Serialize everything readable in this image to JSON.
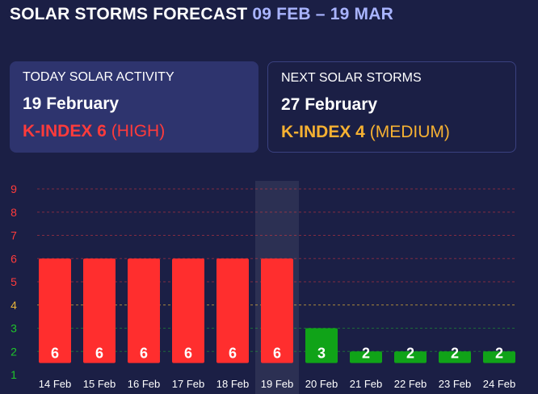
{
  "header": {
    "title": "SOLAR STORMS FORECAST",
    "date_range": "09 FEB – 19 MAR"
  },
  "today_card": {
    "label": "TODAY SOLAR ACTIVITY",
    "date": "19 February",
    "k_index": "K-INDEX 6",
    "level": "(HIGH)"
  },
  "next_card": {
    "label": "NEXT SOLAR STORMS",
    "date": "27 February",
    "k_index": "K-INDEX 4",
    "level": "(MEDIUM)"
  },
  "colors": {
    "high": "#ff2e2e",
    "low": "#10a318",
    "medium_line": "#e8b53a",
    "high_axis": "#ff3b3b",
    "low_axis": "#1fc62a",
    "highlight": "#ffffff"
  },
  "chart_data": {
    "type": "bar",
    "categories": [
      "14 Feb",
      "15 Feb",
      "16 Feb",
      "17 Feb",
      "18 Feb",
      "19 Feb",
      "20 Feb",
      "21 Feb",
      "22 Feb",
      "23 Feb",
      "24 Feb"
    ],
    "values": [
      6,
      6,
      6,
      6,
      6,
      6,
      3,
      2,
      2,
      2,
      2
    ],
    "y_ticks": [
      1,
      2,
      3,
      4,
      5,
      6,
      7,
      8,
      9
    ],
    "ylim": [
      0.5,
      9
    ],
    "highlighted_category": "19 Feb",
    "grid": true
  }
}
